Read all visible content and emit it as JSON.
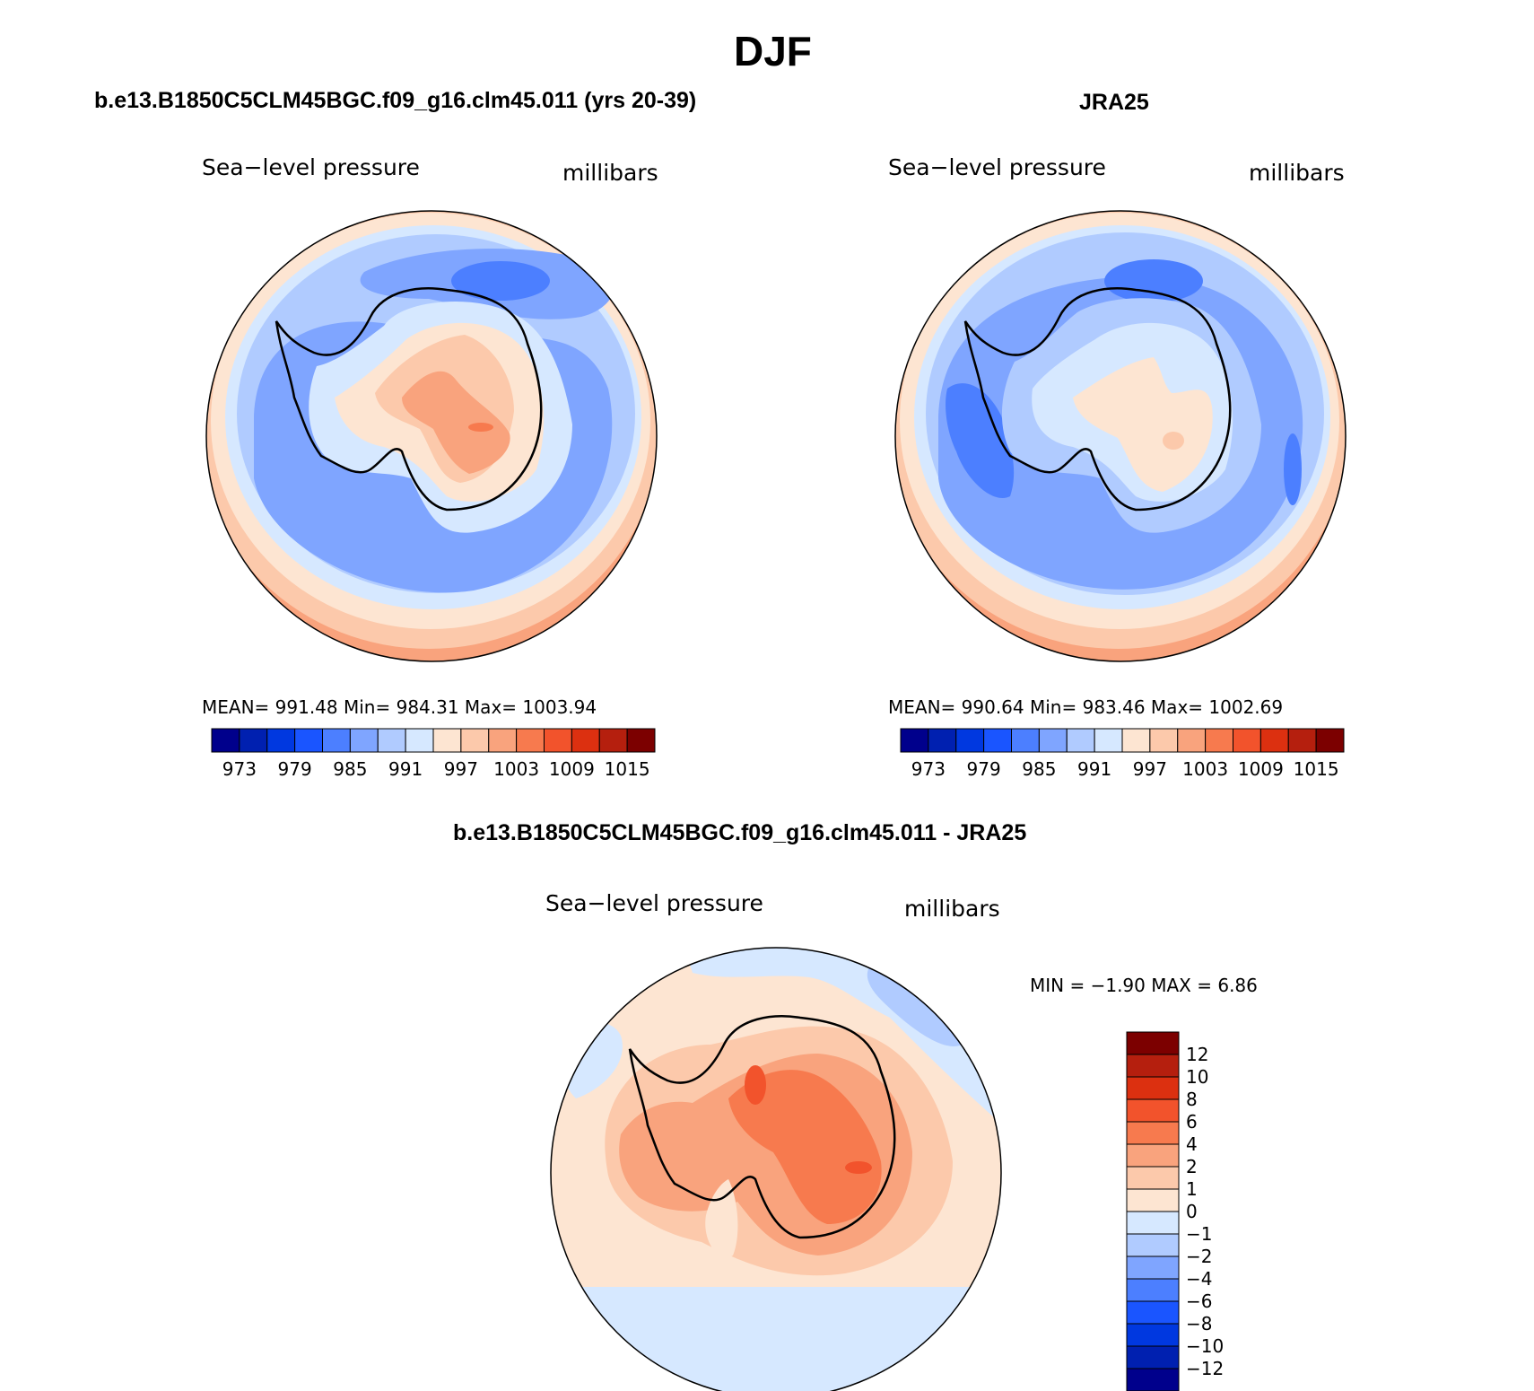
{
  "figure": {
    "season": "DJF",
    "panels": [
      {
        "title": "b.e13.B1850C5CLM45BGC.f09_g16.clm45.011 (yrs 20-39)",
        "variable": "Sea−level pressure",
        "units": "millibars",
        "stats": "MEAN=  991.48    Min=  984.31    Max=  1003.94"
      },
      {
        "title": "JRA25",
        "variable": "Sea−level pressure",
        "units": "millibars",
        "stats": "MEAN=  990.64    Min=  983.46    Max=  1002.69"
      },
      {
        "title": "b.e13.B1850C5CLM45BGC.f09_g16.clm45.011 - JRA25",
        "variable": "Sea−level pressure",
        "units": "millibars",
        "stats": "MIN =    −1.90  MAX =     6.86"
      }
    ]
  },
  "colorbar_main": {
    "colors": [
      "#00008c",
      "#0020b0",
      "#0038e0",
      "#1a55ff",
      "#4c7fff",
      "#7fa5ff",
      "#b0cbff",
      "#d6e8ff",
      "#fde5d2",
      "#fcc9ab",
      "#f9a37d",
      "#f77a4e",
      "#f2532c",
      "#dc3010",
      "#b51f0e",
      "#7c0000"
    ],
    "labels": [
      "973",
      "979",
      "985",
      "991",
      "997",
      "1003",
      "1009",
      "1015"
    ]
  },
  "colorbar_diff": {
    "colors": [
      "#00008c",
      "#0020b0",
      "#0038e0",
      "#1a55ff",
      "#4c7fff",
      "#7fa5ff",
      "#b0cbff",
      "#d6e8ff",
      "#fde5d2",
      "#fcc9ab",
      "#f9a37d",
      "#f77a4e",
      "#f2532c",
      "#dc3010",
      "#b51f0e",
      "#7c0000"
    ],
    "labels": [
      "12",
      "10",
      "8",
      "6",
      "4",
      "2",
      "1",
      "0",
      "−1",
      "−2",
      "−4",
      "−6",
      "−8",
      "−10",
      "−12"
    ]
  }
}
